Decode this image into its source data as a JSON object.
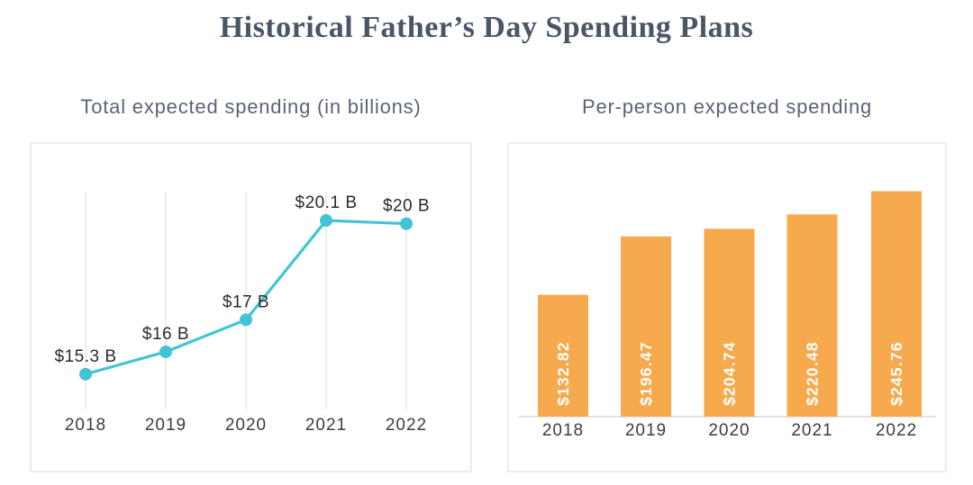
{
  "page": {
    "title": "Historical Father’s Day Spending Plans"
  },
  "colors": {
    "title": "#4a5568",
    "subtitle": "#5a6477",
    "line": "#41c4d5",
    "bar": "#f7a94e",
    "grid": "#e9e9e9",
    "axis_label": "#3d3d3d",
    "data_label": "#2b2b2b",
    "bar_label": "#ffffff",
    "axis_line": "#d9d9d9",
    "panel_border": "#ececec"
  },
  "chart_data": [
    {
      "type": "line",
      "title": "Total expected spending (in billions)",
      "categories": [
        "2018",
        "2019",
        "2020",
        "2021",
        "2022"
      ],
      "values": [
        15.3,
        16,
        17,
        20.1,
        20
      ],
      "point_labels": [
        "$15.3 B",
        "$16 B",
        "$17 B",
        "$20.1 B",
        "$20 B"
      ],
      "ylabel": "",
      "xlabel": "",
      "ylim": [
        14.2,
        21
      ],
      "grid": "vertical-only",
      "legend": "none"
    },
    {
      "type": "bar",
      "title": "Per-person expected spending",
      "categories": [
        "2018",
        "2019",
        "2020",
        "2021",
        "2022"
      ],
      "values": [
        132.82,
        196.47,
        204.74,
        220.48,
        245.76
      ],
      "bar_labels": [
        "$132.82",
        "$196.47",
        "$204.74",
        "$220.48",
        "$245.76"
      ],
      "ylabel": "",
      "xlabel": "",
      "ylim": [
        0,
        260
      ],
      "grid": "none",
      "legend": "none"
    }
  ]
}
